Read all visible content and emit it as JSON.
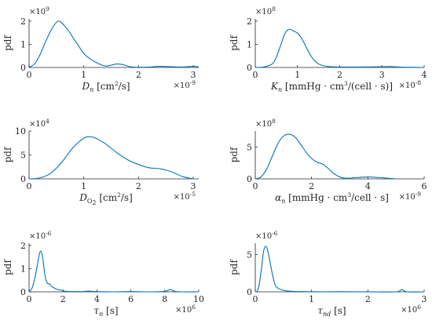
{
  "colors": {
    "line": "#0072BD",
    "axis": "#262626"
  },
  "chart_data": [
    {
      "type": "line",
      "ylabel": "pdf",
      "xlabel_parts": [
        {
          "t": "D"
        },
        {
          "t": "n",
          "sub": true,
          "i": true
        },
        {
          "t": " [cm"
        },
        {
          "t": "2",
          "sup": true
        },
        {
          "t": "/s]"
        }
      ],
      "x_multiplier_base": "×10",
      "x_multiplier_exp": "-9",
      "y_multiplier_base": "×10",
      "y_multiplier_exp": "9",
      "xlim": [
        0,
        3.1
      ],
      "ylim": [
        0,
        2.1
      ],
      "xticks": [
        0,
        1,
        2,
        3
      ],
      "xtick_labels": [
        "0",
        "1",
        "2",
        "3"
      ],
      "yticks": [
        0,
        1,
        2
      ],
      "ytick_labels": [
        "0",
        "1",
        "2"
      ],
      "series": [
        {
          "x": [
            0.0,
            0.1,
            0.2,
            0.3,
            0.4,
            0.5,
            0.55,
            0.6,
            0.7,
            0.8,
            0.9,
            1.0,
            1.1,
            1.2,
            1.3,
            1.4,
            1.5,
            1.6,
            1.7,
            1.8,
            1.9,
            2.0,
            2.2,
            2.4,
            2.6,
            2.8,
            3.0,
            3.1
          ],
          "y": [
            0.02,
            0.15,
            0.55,
            1.1,
            1.6,
            1.95,
            2.0,
            1.92,
            1.65,
            1.3,
            0.95,
            0.6,
            0.4,
            0.25,
            0.13,
            0.06,
            0.1,
            0.15,
            0.13,
            0.06,
            0.02,
            0.01,
            0.02,
            0.05,
            0.03,
            0.02,
            0.05,
            0.02
          ]
        }
      ]
    },
    {
      "type": "line",
      "ylabel": "pdf",
      "xlabel_parts": [
        {
          "t": "K"
        },
        {
          "t": "n",
          "sub": true,
          "i": true
        },
        {
          "t": " [mmHg · cm"
        },
        {
          "t": "3",
          "sup": true
        },
        {
          "t": "/(cell · s)]"
        }
      ],
      "x_multiplier_base": "×10",
      "x_multiplier_exp": "-8",
      "y_multiplier_base": "×10",
      "y_multiplier_exp": "8",
      "xlim": [
        0,
        4
      ],
      "ylim": [
        0,
        2.1
      ],
      "xticks": [
        0,
        1,
        2,
        3,
        4
      ],
      "xtick_labels": [
        "0",
        "1",
        "2",
        "3",
        "4"
      ],
      "yticks": [
        0,
        1,
        2
      ],
      "ytick_labels": [
        "0",
        "1",
        "2"
      ],
      "series": [
        {
          "x": [
            0.0,
            0.2,
            0.4,
            0.5,
            0.6,
            0.7,
            0.8,
            0.9,
            1.0,
            1.1,
            1.2,
            1.3,
            1.4,
            1.5,
            1.6,
            1.7,
            1.8,
            2.0,
            2.5,
            3.0,
            3.2,
            3.4,
            3.6,
            4.0
          ],
          "y": [
            0.0,
            0.02,
            0.15,
            0.45,
            0.95,
            1.45,
            1.65,
            1.58,
            1.48,
            1.25,
            0.9,
            0.55,
            0.3,
            0.15,
            0.08,
            0.05,
            0.03,
            0.02,
            0.02,
            0.03,
            0.04,
            0.02,
            0.01,
            0.0
          ]
        }
      ]
    },
    {
      "type": "area",
      "ylabel": "pdf",
      "xlabel_parts": [
        {
          "t": "D"
        },
        {
          "t": "O",
          "sub": true
        },
        {
          "t": "2",
          "subsub": true
        },
        {
          "t": " [cm"
        },
        {
          "t": "2",
          "sup": true
        },
        {
          "t": "/s]"
        }
      ],
      "x_multiplier_base": "×10",
      "x_multiplier_exp": "-5",
      "y_multiplier_base": "×10",
      "y_multiplier_exp": "4",
      "xlim": [
        0,
        3.1
      ],
      "ylim": [
        0,
        10
      ],
      "xticks": [
        0,
        1,
        2,
        3
      ],
      "xtick_labels": [
        "0",
        "1",
        "2",
        "3"
      ],
      "yticks": [
        0,
        5,
        10
      ],
      "ytick_labels": [
        "0",
        "5",
        "10"
      ],
      "series": [
        {
          "x": [
            0.0,
            0.2,
            0.4,
            0.6,
            0.8,
            1.0,
            1.1,
            1.2,
            1.4,
            1.6,
            1.8,
            2.0,
            2.2,
            2.4,
            2.6,
            2.8,
            3.0
          ],
          "y": [
            0.0,
            0.2,
            1.2,
            3.5,
            6.5,
            8.5,
            8.8,
            8.6,
            7.3,
            5.5,
            4.0,
            3.0,
            2.3,
            2.1,
            1.5,
            0.5,
            0.0
          ]
        }
      ]
    },
    {
      "type": "line",
      "ylabel": "pdf",
      "xlabel_parts": [
        {
          "t": "α"
        },
        {
          "t": "n",
          "sub": true,
          "i": true
        },
        {
          "t": " [mmHg · cm"
        },
        {
          "t": "3",
          "sup": true
        },
        {
          "t": "/cell · s]"
        }
      ],
      "x_multiplier_base": "×10",
      "x_multiplier_exp": "-9",
      "y_multiplier_base": "×10",
      "y_multiplier_exp": "8",
      "xlim": [
        0,
        6
      ],
      "ylim": [
        0,
        7.5
      ],
      "xticks": [
        0,
        2,
        4,
        6
      ],
      "xtick_labels": [
        "0",
        "2",
        "4",
        "6"
      ],
      "yticks": [
        0,
        5
      ],
      "ytick_labels": [
        "0",
        "5"
      ],
      "series": [
        {
          "x": [
            0.0,
            0.2,
            0.4,
            0.6,
            0.8,
            1.0,
            1.2,
            1.4,
            1.6,
            1.8,
            2.0,
            2.2,
            2.4,
            2.6,
            2.8,
            3.0,
            3.2,
            3.6,
            4.0,
            4.4,
            5.0
          ],
          "y": [
            0.0,
            0.3,
            1.5,
            3.5,
            5.5,
            6.7,
            7.0,
            6.6,
            5.5,
            4.2,
            3.2,
            2.6,
            2.3,
            1.6,
            0.8,
            0.3,
            0.1,
            0.2,
            0.3,
            0.2,
            0.0
          ]
        }
      ]
    },
    {
      "type": "line",
      "ylabel": "pdf",
      "xlabel_parts": [
        {
          "t": "τ"
        },
        {
          "t": "n",
          "sub": true,
          "i": true
        },
        {
          "t": " [s]"
        }
      ],
      "x_multiplier_base": "×10",
      "x_multiplier_exp": "6",
      "y_multiplier_base": "×10",
      "y_multiplier_exp": "-6",
      "xlim": [
        0,
        10
      ],
      "ylim": [
        0,
        2.1
      ],
      "xticks": [
        0,
        2,
        4,
        6,
        8,
        10
      ],
      "xtick_labels": [
        "0",
        "2",
        "4",
        "6",
        "8",
        "10"
      ],
      "yticks": [
        0,
        1,
        2
      ],
      "ytick_labels": [
        "0",
        "1",
        "2"
      ],
      "series": [
        {
          "x": [
            0.0,
            0.2,
            0.4,
            0.6,
            0.7,
            0.8,
            0.9,
            1.0,
            1.1,
            1.2,
            1.3,
            1.4,
            1.6,
            1.8,
            2.0,
            2.2,
            3.0,
            3.5,
            4.0,
            5.0,
            6.0,
            7.0,
            8.0,
            8.3,
            8.6,
            9.0,
            10.0
          ],
          "y": [
            0.0,
            0.2,
            0.8,
            1.6,
            1.75,
            1.5,
            0.9,
            0.5,
            0.35,
            0.35,
            0.25,
            0.2,
            0.12,
            0.08,
            0.05,
            0.02,
            0.01,
            0.03,
            0.01,
            0.0,
            0.01,
            0.0,
            0.02,
            0.1,
            0.02,
            0.0,
            0.0
          ]
        }
      ]
    },
    {
      "type": "line",
      "ylabel": "pdf",
      "xlabel_parts": [
        {
          "t": "τ"
        },
        {
          "t": "nd",
          "sub": true,
          "i": true
        },
        {
          "t": " [s]"
        }
      ],
      "x_multiplier_base": "×10",
      "x_multiplier_exp": "6",
      "y_multiplier_base": "×10",
      "y_multiplier_exp": "-6",
      "xlim": [
        0,
        3
      ],
      "ylim": [
        0,
        6.5
      ],
      "xticks": [
        0,
        1,
        2,
        3
      ],
      "xtick_labels": [
        "0",
        "1",
        "2",
        "3"
      ],
      "yticks": [
        0,
        5
      ],
      "ytick_labels": [
        "0",
        "5"
      ],
      "series": [
        {
          "x": [
            0.0,
            0.05,
            0.1,
            0.15,
            0.2,
            0.25,
            0.3,
            0.35,
            0.4,
            0.5,
            0.6,
            0.7,
            0.8,
            0.9,
            1.0,
            1.2,
            1.5,
            2.0,
            2.5,
            2.6,
            2.7,
            3.0
          ],
          "y": [
            0.0,
            0.3,
            2.5,
            5.5,
            6.0,
            4.5,
            2.5,
            1.0,
            0.5,
            0.2,
            0.1,
            0.05,
            0.03,
            0.02,
            0.02,
            0.01,
            0.02,
            0.01,
            0.0,
            0.3,
            0.0,
            0.0
          ]
        }
      ]
    }
  ]
}
